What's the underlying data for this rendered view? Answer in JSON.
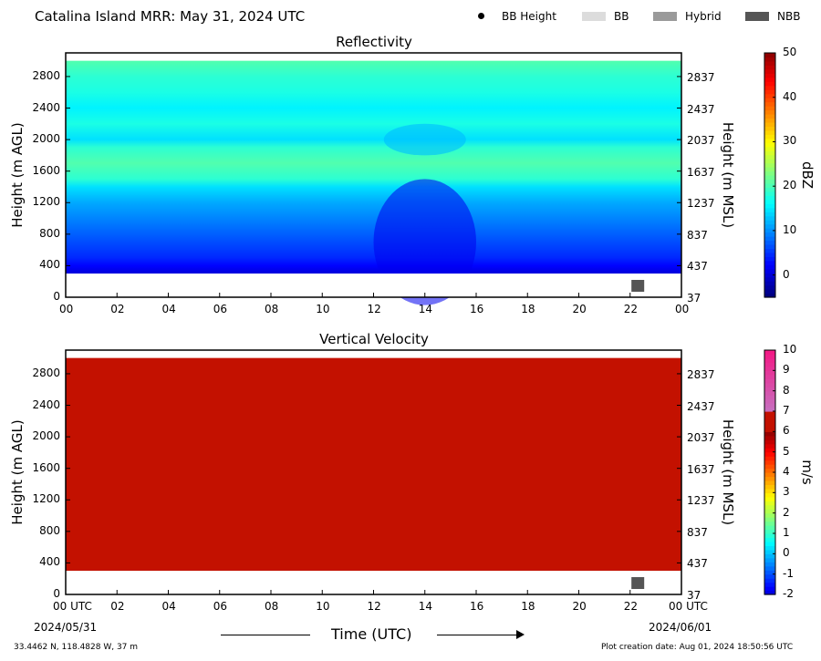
{
  "page": {
    "title": "Catalina Island MRR:  May 31, 2024 UTC",
    "footer_left": "33.4462 N, 118.4828 W, 37 m",
    "footer_right": "Plot creation date: Aug 01, 2024 18:50:56 UTC",
    "xlabel": "Time (UTC)",
    "date_start": "2024/05/31",
    "date_end": "2024/06/01"
  },
  "legend": [
    {
      "label": "BB Height",
      "symbol": "dot",
      "color": "#000000"
    },
    {
      "label": "BB",
      "symbol": "box",
      "color": "#dcdcdc"
    },
    {
      "label": "Hybrid",
      "symbol": "box",
      "color": "#9a9a9a"
    },
    {
      "label": "NBB",
      "symbol": "box",
      "color": "#555555"
    }
  ],
  "chart_data": [
    {
      "type": "heatmap",
      "title": "Reflectivity",
      "ylabel": "Height (m AGL)",
      "ylabel_right": "Height (m MSL)",
      "xticks": [
        "00",
        "02",
        "04",
        "06",
        "08",
        "10",
        "12",
        "14",
        "16",
        "18",
        "20",
        "22",
        "00"
      ],
      "yticks_left": [
        "0",
        "400",
        "800",
        "1200",
        "1600",
        "2000",
        "2400",
        "2800"
      ],
      "yticks_right": [
        "37",
        "437",
        "837",
        "1237",
        "1637",
        "2037",
        "2437",
        "2837"
      ],
      "xlim": [
        0,
        24
      ],
      "ylim": [
        0,
        3100
      ],
      "data_extent_height": [
        300,
        3000
      ],
      "colorbar": {
        "label": "dBZ",
        "ticks": [
          "0",
          "10",
          "20",
          "30",
          "40",
          "50"
        ],
        "range": [
          -5,
          50
        ]
      },
      "profile_height_m": [
        300,
        400,
        500,
        600,
        800,
        1000,
        1200,
        1400,
        1500,
        1700,
        1900,
        2000,
        2200,
        2400,
        2600,
        2800,
        3000
      ],
      "profile_dbz": [
        0,
        2,
        4,
        5,
        7,
        9,
        11,
        14,
        18,
        20,
        18,
        14,
        17,
        15,
        17,
        18,
        20
      ],
      "enhanced_period_hours": [
        12,
        16
      ],
      "bb_marker": {
        "type": "NBB",
        "time_hours": 22.3
      }
    },
    {
      "type": "heatmap",
      "title": "Vertical Velocity",
      "ylabel": "Height (m AGL)",
      "ylabel_right": "Height (m MSL)",
      "xticks": [
        "00 UTC",
        "02",
        "04",
        "06",
        "08",
        "10",
        "12",
        "14",
        "16",
        "18",
        "20",
        "22",
        "00 UTC"
      ],
      "yticks_left": [
        "0",
        "400",
        "800",
        "1200",
        "1600",
        "2000",
        "2400",
        "2800"
      ],
      "yticks_right": [
        "37",
        "437",
        "837",
        "1237",
        "1637",
        "2037",
        "2437",
        "2837"
      ],
      "xlim": [
        0,
        24
      ],
      "ylim": [
        0,
        3100
      ],
      "data_extent_height": [
        300,
        3000
      ],
      "colorbar": {
        "label": "m/s",
        "ticks": [
          "-2",
          "-1",
          "0",
          "1",
          "2",
          "3",
          "4",
          "5",
          "6",
          "7",
          "8",
          "9",
          "10"
        ],
        "range": [
          -2,
          10
        ]
      },
      "field_value_ms": 6,
      "field_color": "#c31100",
      "bb_marker": {
        "type": "NBB",
        "time_hours": 22.3
      }
    }
  ]
}
